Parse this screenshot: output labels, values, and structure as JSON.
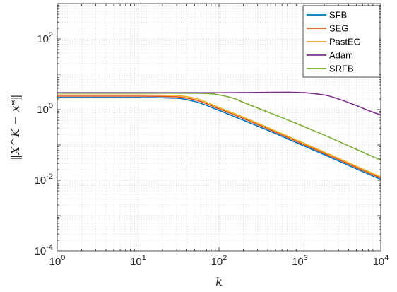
{
  "chart_data": {
    "type": "line",
    "xscale": "log",
    "yscale": "log",
    "xlim": [
      1,
      10000
    ],
    "ylim": [
      0.0001,
      1000
    ],
    "xlabel": "k",
    "ylabel": "‖X^K − x*‖",
    "grid": true,
    "legend_position": "top-right",
    "xticks": [
      {
        "base": "10",
        "exp": "0"
      },
      {
        "base": "10",
        "exp": "1"
      },
      {
        "base": "10",
        "exp": "2"
      },
      {
        "base": "10",
        "exp": "3"
      },
      {
        "base": "10",
        "exp": "4"
      }
    ],
    "yticks": [
      {
        "base": "10",
        "exp": "-4"
      },
      {
        "base": "10",
        "exp": "-2"
      },
      {
        "base": "10",
        "exp": "0"
      },
      {
        "base": "10",
        "exp": "2"
      }
    ],
    "series": [
      {
        "name": "SFB",
        "color": "#0072BD",
        "x": [
          1,
          10,
          30,
          50,
          100,
          200,
          500,
          1000,
          2000,
          5000,
          10000
        ],
        "y": [
          2.2,
          2.2,
          2.1,
          1.7,
          0.95,
          0.5,
          0.21,
          0.105,
          0.053,
          0.021,
          0.0105
        ]
      },
      {
        "name": "SEG",
        "color": "#D95319",
        "x": [
          1,
          10,
          30,
          50,
          100,
          200,
          500,
          1000,
          2000,
          5000,
          10000
        ],
        "y": [
          2.4,
          2.4,
          2.3,
          1.9,
          1.05,
          0.56,
          0.23,
          0.115,
          0.058,
          0.023,
          0.0115
        ]
      },
      {
        "name": "PastEG",
        "color": "#EDB120",
        "x": [
          1,
          10,
          30,
          50,
          100,
          200,
          500,
          1000,
          2000,
          5000,
          10000
        ],
        "y": [
          2.6,
          2.6,
          2.5,
          2.1,
          1.15,
          0.61,
          0.25,
          0.125,
          0.063,
          0.025,
          0.0125
        ]
      },
      {
        "name": "Adam",
        "color": "#7E2F8E",
        "x": [
          1,
          10,
          100,
          300,
          700,
          1000,
          2000,
          3000,
          5000,
          7000,
          10000
        ],
        "y": [
          3.0,
          3.0,
          3.0,
          3.05,
          3.1,
          3.05,
          2.6,
          2.0,
          1.3,
          0.95,
          0.7
        ]
      },
      {
        "name": "SRFB",
        "color": "#77AC30",
        "x": [
          1,
          10,
          50,
          80,
          100,
          150,
          200,
          500,
          1000,
          2000,
          5000,
          10000
        ],
        "y": [
          2.9,
          2.9,
          2.9,
          2.8,
          2.6,
          2.1,
          1.6,
          0.7,
          0.37,
          0.19,
          0.075,
          0.037
        ]
      }
    ]
  }
}
